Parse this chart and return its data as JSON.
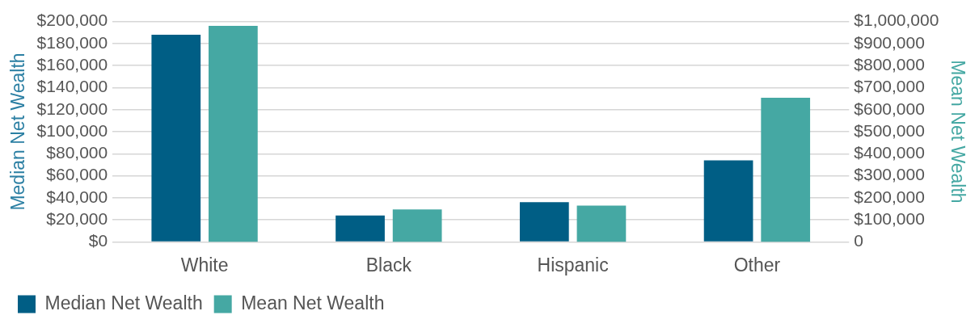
{
  "chart_data": {
    "type": "bar",
    "categories": [
      "White",
      "Black",
      "Hispanic",
      "Other"
    ],
    "series": [
      {
        "name": "Median Net Wealth",
        "color": "#005e85",
        "values": [
          188000,
          24000,
          36000,
          74000
        ]
      },
      {
        "name": "Mean Net Wealth",
        "color": "#45a8a3",
        "values": [
          980000,
          147000,
          165000,
          654000
        ],
        "axis": "y2"
      }
    ],
    "ylabel": "Median Net Wealth",
    "y2label": "Mean Net Wealth",
    "ylim": [
      0,
      200000
    ],
    "yticks": [
      {
        "value": 0,
        "label": "$0"
      },
      {
        "value": 20000,
        "label": "$20,000"
      },
      {
        "value": 40000,
        "label": "$40,000"
      },
      {
        "value": 60000,
        "label": "$60,000"
      },
      {
        "value": 80000,
        "label": "$80,000"
      },
      {
        "value": 100000,
        "label": "$100,000"
      },
      {
        "value": 120000,
        "label": "$120,000"
      },
      {
        "value": 140000,
        "label": "$140,000"
      },
      {
        "value": 160000,
        "label": "$160,000"
      },
      {
        "value": 180000,
        "label": "$180,000"
      },
      {
        "value": 200000,
        "label": "$200,000"
      }
    ],
    "y2lim": [
      0,
      1000000
    ],
    "y2ticks": [
      0,
      {
        "value": 100000,
        "label": "$100,000"
      },
      {
        "value": 200000,
        "label": "$200,000"
      },
      {
        "value": 300000,
        "label": "$300,000"
      },
      {
        "value": 400000,
        "label": "$400,000"
      },
      {
        "value": 500000,
        "label": "$500,000"
      },
      {
        "value": 600000,
        "label": "$600,000"
      },
      {
        "value": 700000,
        "label": "$700,000"
      },
      {
        "value": 800000,
        "label": "$800,000"
      },
      {
        "value": 900000,
        "label": "$900,000"
      },
      {
        "value": 1000000,
        "label": "$1,000,000"
      }
    ],
    "grid": "y",
    "legend": "bottom left"
  }
}
